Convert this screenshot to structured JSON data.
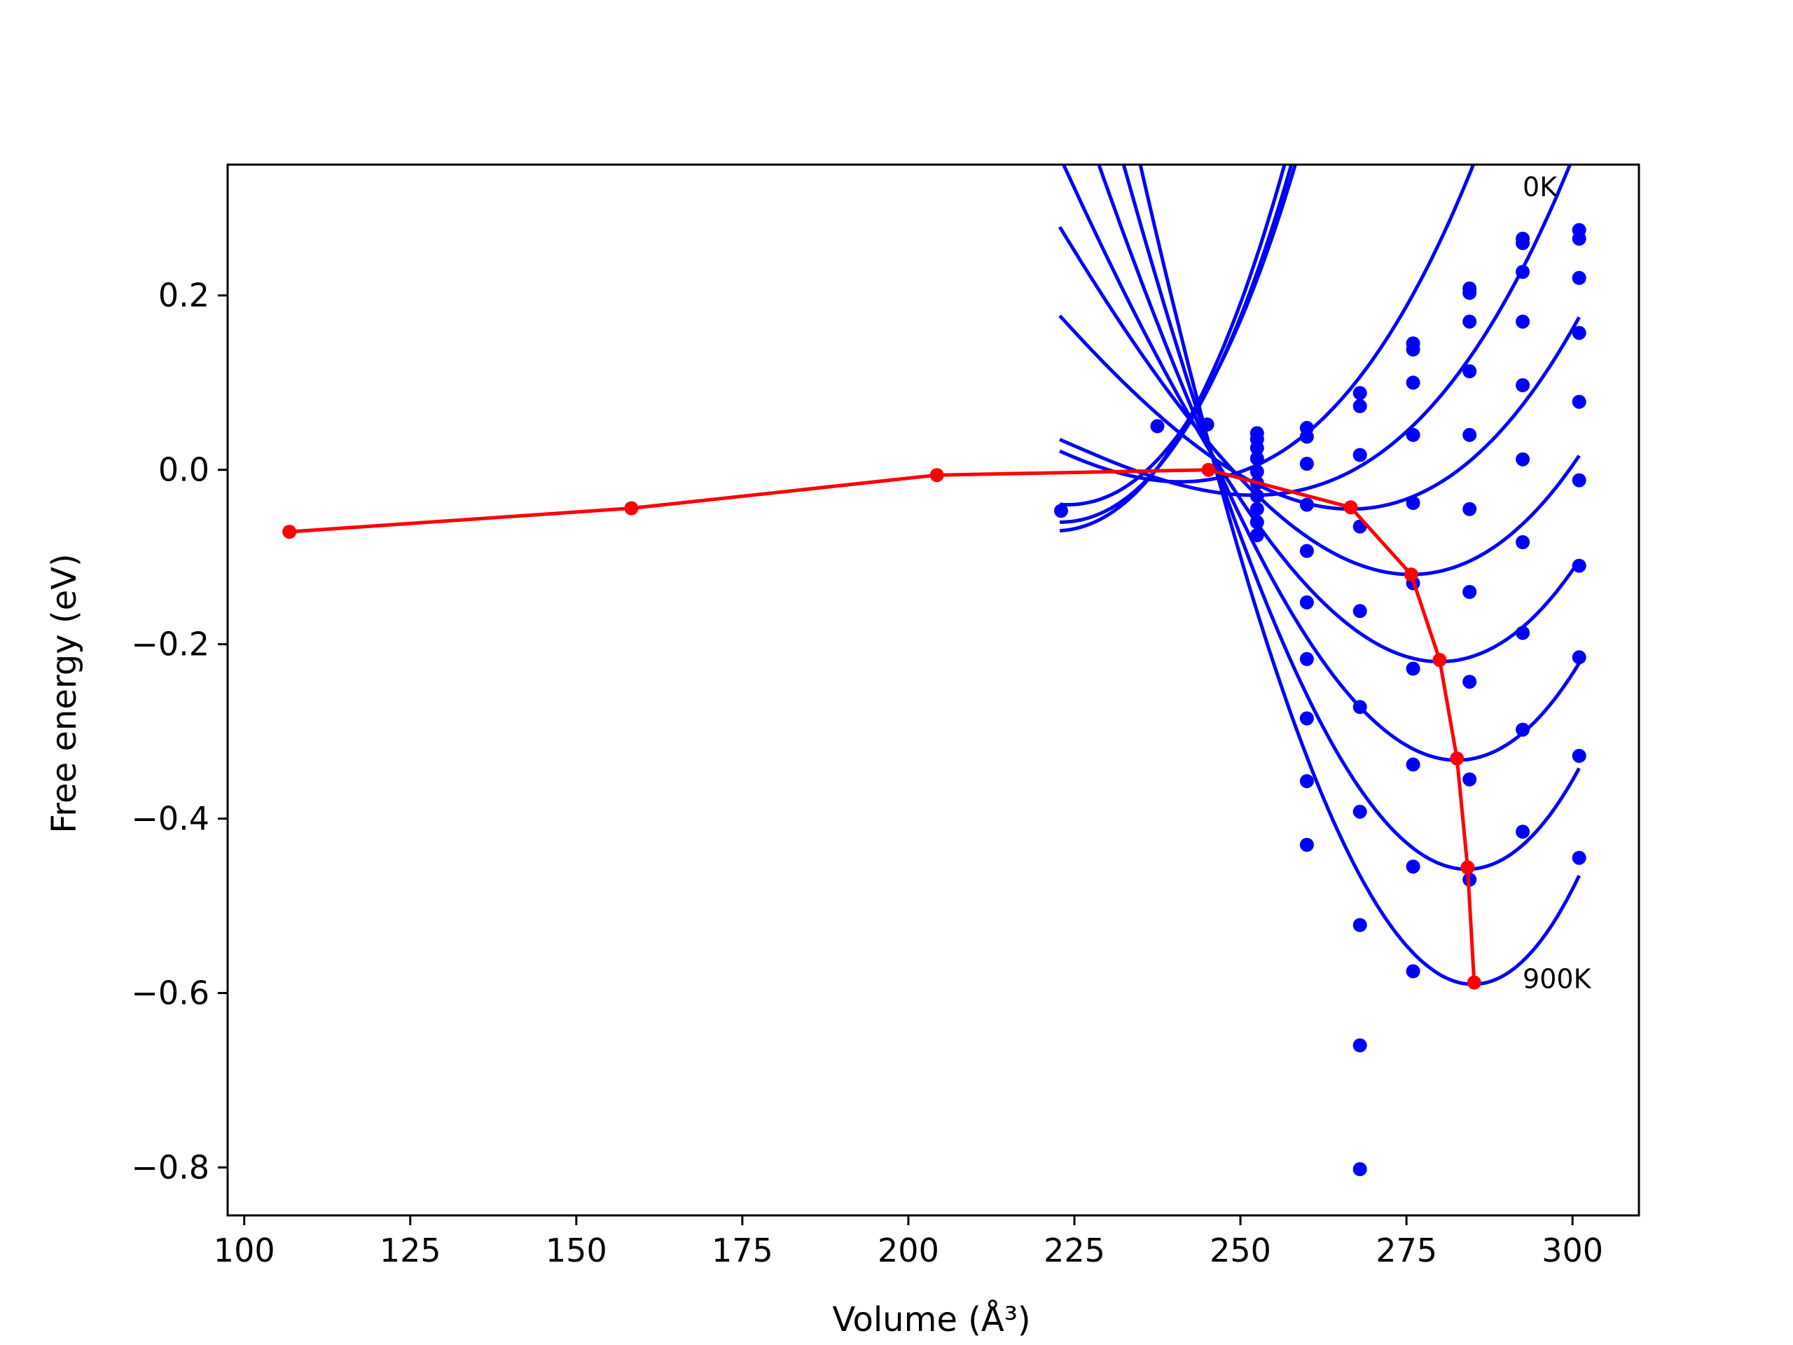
{
  "chart_data": {
    "type": "scatter",
    "title": "",
    "xlabel": "Volume (Å³)",
    "ylabel": "Free energy (eV)",
    "xlim": [
      97.5,
      310
    ],
    "ylim": [
      -0.855,
      0.35
    ],
    "xticks": [
      {
        "value": 100,
        "label": "100"
      },
      {
        "value": 125,
        "label": "125"
      },
      {
        "value": 150,
        "label": "150"
      },
      {
        "value": 175,
        "label": "175"
      },
      {
        "value": 200,
        "label": "200"
      },
      {
        "value": 225,
        "label": "225"
      },
      {
        "value": 250,
        "label": "250"
      },
      {
        "value": 275,
        "label": "275"
      },
      {
        "value": 300,
        "label": "300"
      }
    ],
    "yticks": [
      {
        "value": 0.2,
        "label": "0.2"
      },
      {
        "value": 0.0,
        "label": "0.0"
      },
      {
        "value": -0.2,
        "label": "−0.2"
      },
      {
        "value": -0.4,
        "label": "−0.4"
      },
      {
        "value": -0.6,
        "label": "−0.6"
      },
      {
        "value": -0.8,
        "label": "−0.8"
      }
    ],
    "grid": false,
    "legend": "none",
    "annotations": [
      {
        "text": "0K",
        "x": 292.5,
        "y": 0.325
      },
      {
        "text": "900K",
        "x": 292.5,
        "y": -0.583
      }
    ],
    "colors": {
      "fit_curves": "#0000ff",
      "data_points": "#0000ff",
      "minimum_path": "#ff0000"
    },
    "fit_curves": [
      {
        "v0": 222.8,
        "f0": -0.06,
        "k": 0.00025,
        "d": 2.5e-06,
        "x_range": [
          222.8,
          301
        ]
      },
      {
        "v0": 222.0,
        "f0": -0.07,
        "k": 0.00026,
        "d": 2.6e-06,
        "x_range": [
          222.8,
          301
        ]
      },
      {
        "v0": 224.0,
        "f0": -0.04,
        "k": 0.00025,
        "d": 2.4e-06,
        "x_range": [
          222.8,
          301
        ]
      },
      {
        "v0": 241.0,
        "f0": -0.0137,
        "k": 0.00013,
        "d": 1.3e-06,
        "x_range": [
          222.8,
          301
        ]
      },
      {
        "v0": 252.0,
        "f0": -0.0291,
        "k": 0.00011,
        "d": 1.2e-06,
        "x_range": [
          222.8,
          301
        ]
      },
      {
        "v0": 266.6,
        "f0": -0.045,
        "k": 0.000155,
        "d": 9e-07,
        "x_range": [
          222.8,
          301
        ]
      },
      {
        "v0": 275.7,
        "f0": -0.12,
        "k": 0.00019,
        "d": 9e-07,
        "x_range": [
          222.8,
          301
        ]
      },
      {
        "v0": 280.0,
        "f0": -0.22,
        "k": 0.00024,
        "d": 1.1e-06,
        "x_range": [
          222.8,
          301
        ]
      },
      {
        "v0": 282.6,
        "f0": -0.333,
        "k": 0.000305,
        "d": 1.3e-06,
        "x_range": [
          222.8,
          301
        ]
      },
      {
        "v0": 284.1,
        "f0": -0.458,
        "k": 0.00038,
        "d": 1.5e-06,
        "x_range": [
          222.8,
          301
        ]
      },
      {
        "v0": 285.0,
        "f0": -0.59,
        "k": 0.00046,
        "d": 1.7e-06,
        "x_range": [
          222.8,
          301
        ]
      }
    ],
    "blue_points": [
      {
        "x": 223,
        "y": -0.047
      },
      {
        "x": 237.5,
        "y": 0.05
      },
      {
        "x": 245,
        "y": 0.052
      },
      {
        "x": 252.5,
        "y": 0.042
      },
      {
        "x": 252.5,
        "y": 0.035
      },
      {
        "x": 252.5,
        "y": 0.025
      },
      {
        "x": 252.5,
        "y": 0.013
      },
      {
        "x": 252.5,
        "y": -0.002
      },
      {
        "x": 252.5,
        "y": -0.015
      },
      {
        "x": 252.5,
        "y": -0.03
      },
      {
        "x": 252.5,
        "y": -0.045
      },
      {
        "x": 252.5,
        "y": -0.06
      },
      {
        "x": 252.5,
        "y": -0.075
      },
      {
        "x": 260,
        "y": 0.048
      },
      {
        "x": 260,
        "y": 0.038
      },
      {
        "x": 260,
        "y": 0.007
      },
      {
        "x": 260,
        "y": -0.04
      },
      {
        "x": 260,
        "y": -0.093
      },
      {
        "x": 260,
        "y": -0.152
      },
      {
        "x": 260,
        "y": -0.217
      },
      {
        "x": 260,
        "y": -0.285
      },
      {
        "x": 260,
        "y": -0.357
      },
      {
        "x": 260,
        "y": -0.43
      },
      {
        "x": 268,
        "y": 0.088
      },
      {
        "x": 268,
        "y": 0.073
      },
      {
        "x": 268,
        "y": 0.017
      },
      {
        "x": 268,
        "y": -0.065
      },
      {
        "x": 268,
        "y": -0.162
      },
      {
        "x": 268,
        "y": -0.272
      },
      {
        "x": 268,
        "y": -0.392
      },
      {
        "x": 268,
        "y": -0.522
      },
      {
        "x": 268,
        "y": -0.66
      },
      {
        "x": 268,
        "y": -0.802
      },
      {
        "x": 276,
        "y": 0.145
      },
      {
        "x": 276,
        "y": 0.138
      },
      {
        "x": 276,
        "y": 0.1
      },
      {
        "x": 276,
        "y": 0.04
      },
      {
        "x": 276,
        "y": -0.038
      },
      {
        "x": 276,
        "y": -0.13
      },
      {
        "x": 276,
        "y": -0.228
      },
      {
        "x": 276,
        "y": -0.338
      },
      {
        "x": 276,
        "y": -0.455
      },
      {
        "x": 276,
        "y": -0.575
      },
      {
        "x": 284.5,
        "y": 0.208
      },
      {
        "x": 284.5,
        "y": 0.203
      },
      {
        "x": 284.5,
        "y": 0.17
      },
      {
        "x": 284.5,
        "y": 0.113
      },
      {
        "x": 284.5,
        "y": 0.04
      },
      {
        "x": 284.5,
        "y": -0.045
      },
      {
        "x": 284.5,
        "y": -0.14
      },
      {
        "x": 284.5,
        "y": -0.243
      },
      {
        "x": 284.5,
        "y": -0.355
      },
      {
        "x": 284.5,
        "y": -0.47
      },
      {
        "x": 292.5,
        "y": 0.265
      },
      {
        "x": 292.5,
        "y": 0.26
      },
      {
        "x": 292.5,
        "y": 0.227
      },
      {
        "x": 292.5,
        "y": 0.17
      },
      {
        "x": 292.5,
        "y": 0.097
      },
      {
        "x": 292.5,
        "y": 0.012
      },
      {
        "x": 292.5,
        "y": -0.083
      },
      {
        "x": 292.5,
        "y": -0.187
      },
      {
        "x": 292.5,
        "y": -0.298
      },
      {
        "x": 292.5,
        "y": -0.415
      },
      {
        "x": 301,
        "y": 0.275
      },
      {
        "x": 301,
        "y": 0.265
      },
      {
        "x": 301,
        "y": 0.22
      },
      {
        "x": 301,
        "y": 0.157
      },
      {
        "x": 301,
        "y": 0.078
      },
      {
        "x": 301,
        "y": -0.012
      },
      {
        "x": 301,
        "y": -0.11
      },
      {
        "x": 301,
        "y": -0.215
      },
      {
        "x": 301,
        "y": -0.328
      },
      {
        "x": 301,
        "y": -0.445
      }
    ],
    "red_path": [
      {
        "x": 106.8,
        "y": -0.071
      },
      {
        "x": 158.3,
        "y": -0.044
      },
      {
        "x": 204.3,
        "y": -0.006
      },
      {
        "x": 245.2,
        "y": 0.0
      },
      {
        "x": 266.6,
        "y": -0.043
      },
      {
        "x": 275.7,
        "y": -0.12
      },
      {
        "x": 280.0,
        "y": -0.218
      },
      {
        "x": 282.6,
        "y": -0.331
      },
      {
        "x": 284.2,
        "y": -0.456
      },
      {
        "x": 285.2,
        "y": -0.588
      }
    ]
  }
}
